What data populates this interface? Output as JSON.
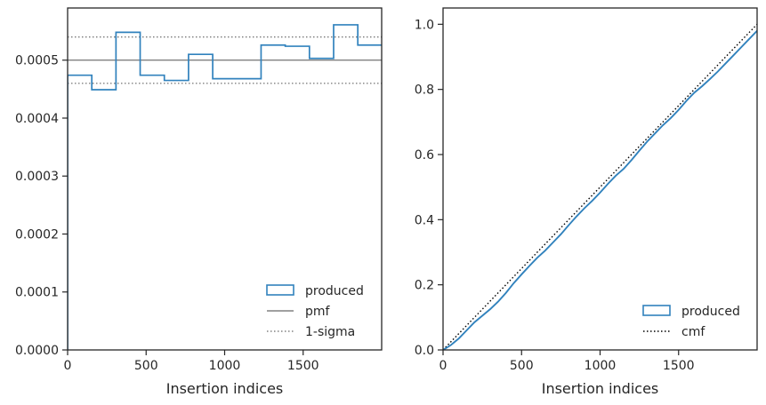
{
  "chart_data": [
    {
      "type": "histogram-step",
      "title": "",
      "xlabel": "Insertion indices",
      "ylabel": "",
      "xlim": [
        0,
        2000
      ],
      "ylim": [
        0,
        0.00059
      ],
      "xticks": [
        0,
        500,
        1000,
        1500
      ],
      "xtick_labels": [
        "0",
        "500",
        "1000",
        "1500"
      ],
      "yticks": [
        0,
        0.0001,
        0.0002,
        0.0003,
        0.0004,
        0.0005
      ],
      "ytick_labels": [
        "0.0000",
        "0.0001",
        "0.0002",
        "0.0003",
        "0.0004",
        "0.0005"
      ],
      "grid": false,
      "legend_position": "lower-right",
      "bin_edges": [
        0,
        154,
        308,
        462,
        616,
        770,
        924,
        1078,
        1232,
        1386,
        1540,
        1694,
        1848,
        2000
      ],
      "series": [
        {
          "name": "produced",
          "kind": "step",
          "color": "#3182bd",
          "values": [
            0.000474,
            0.000449,
            0.000548,
            0.000474,
            0.000465,
            0.00051,
            0.000468,
            0.000468,
            0.000526,
            0.000524,
            0.000503,
            0.000561,
            0.000526
          ]
        },
        {
          "name": "pmf",
          "kind": "hline",
          "color": "#808080",
          "y": 0.0005
        },
        {
          "name": "1-sigma",
          "kind": "hline-pair",
          "color": "#808080",
          "y": [
            0.00046,
            0.00054
          ]
        }
      ]
    },
    {
      "type": "line",
      "title": "",
      "xlabel": "Insertion indices",
      "ylabel": "",
      "xlim": [
        0,
        2000
      ],
      "ylim": [
        0,
        1.05
      ],
      "xticks": [
        0,
        500,
        1000,
        1500
      ],
      "xtick_labels": [
        "0",
        "500",
        "1000",
        "1500"
      ],
      "yticks": [
        0,
        0.2,
        0.4,
        0.6,
        0.8,
        1.0
      ],
      "ytick_labels": [
        "0.0",
        "0.2",
        "0.4",
        "0.6",
        "0.8",
        "1.0"
      ],
      "grid": false,
      "legend_position": "lower-right",
      "series": [
        {
          "name": "produced",
          "kind": "line",
          "color": "#3182bd",
          "x": [
            0,
            50,
            100,
            150,
            200,
            250,
            300,
            350,
            400,
            450,
            500,
            550,
            600,
            650,
            700,
            750,
            800,
            850,
            900,
            950,
            1000,
            1050,
            1100,
            1150,
            1200,
            1250,
            1300,
            1350,
            1400,
            1450,
            1500,
            1550,
            1600,
            1650,
            1700,
            1750,
            1800,
            1850,
            1900,
            1950,
            2000
          ],
          "y": [
            0.0,
            0.015,
            0.035,
            0.06,
            0.085,
            0.105,
            0.125,
            0.148,
            0.175,
            0.205,
            0.232,
            0.258,
            0.283,
            0.305,
            0.33,
            0.355,
            0.383,
            0.41,
            0.435,
            0.458,
            0.483,
            0.51,
            0.535,
            0.556,
            0.583,
            0.612,
            0.64,
            0.665,
            0.69,
            0.712,
            0.737,
            0.765,
            0.79,
            0.81,
            0.832,
            0.855,
            0.88,
            0.905,
            0.93,
            0.955,
            0.98
          ]
        },
        {
          "name": "cmf",
          "kind": "line-dotted",
          "color": "#000000",
          "x": [
            0,
            2000
          ],
          "y": [
            0.0,
            1.0
          ]
        }
      ]
    }
  ]
}
